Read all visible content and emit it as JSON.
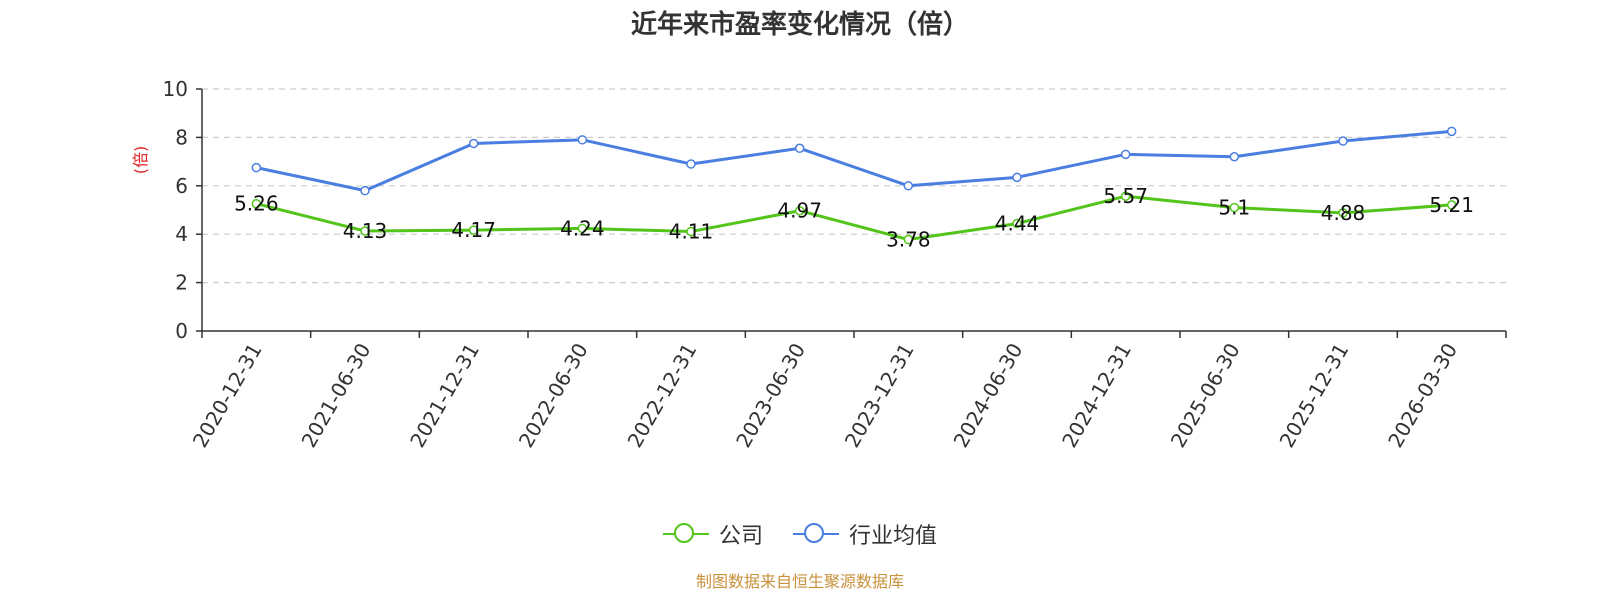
{
  "header": {
    "title": "近年来市盈率变化情况（倍）"
  },
  "footer": {
    "source": "制图数据来自恒生聚源数据库"
  },
  "legend": {
    "items": [
      {
        "label": "公司",
        "color": "#52c41a"
      },
      {
        "label": "行业均值",
        "color": "#4a7ee0"
      }
    ]
  },
  "chart_data": {
    "type": "line",
    "title": "近年来市盈率变化情况（倍）",
    "xlabel": "",
    "ylabel": "(倍)",
    "ylim": [
      0,
      10
    ],
    "yticks": [
      0,
      2,
      4,
      6,
      8,
      10
    ],
    "grid": true,
    "legend_position": "bottom",
    "categories": [
      "2020-12-31",
      "2021-06-30",
      "2021-12-31",
      "2022-06-30",
      "2022-12-31",
      "2023-06-30",
      "2023-12-31",
      "2024-06-30",
      "2024-12-31",
      "2025-06-30",
      "2025-12-31",
      "2026-03-30"
    ],
    "series": [
      {
        "name": "公司",
        "color": "#52c41a",
        "show_labels": true,
        "values": [
          5.26,
          4.13,
          4.17,
          4.24,
          4.11,
          4.97,
          3.78,
          4.44,
          5.57,
          5.1,
          4.88,
          5.21
        ]
      },
      {
        "name": "行业均值",
        "color": "#4a7ee0",
        "show_labels": false,
        "values": [
          6.75,
          5.8,
          7.75,
          7.9,
          6.9,
          7.55,
          6.0,
          6.35,
          7.3,
          7.2,
          7.85,
          8.25
        ]
      }
    ]
  }
}
